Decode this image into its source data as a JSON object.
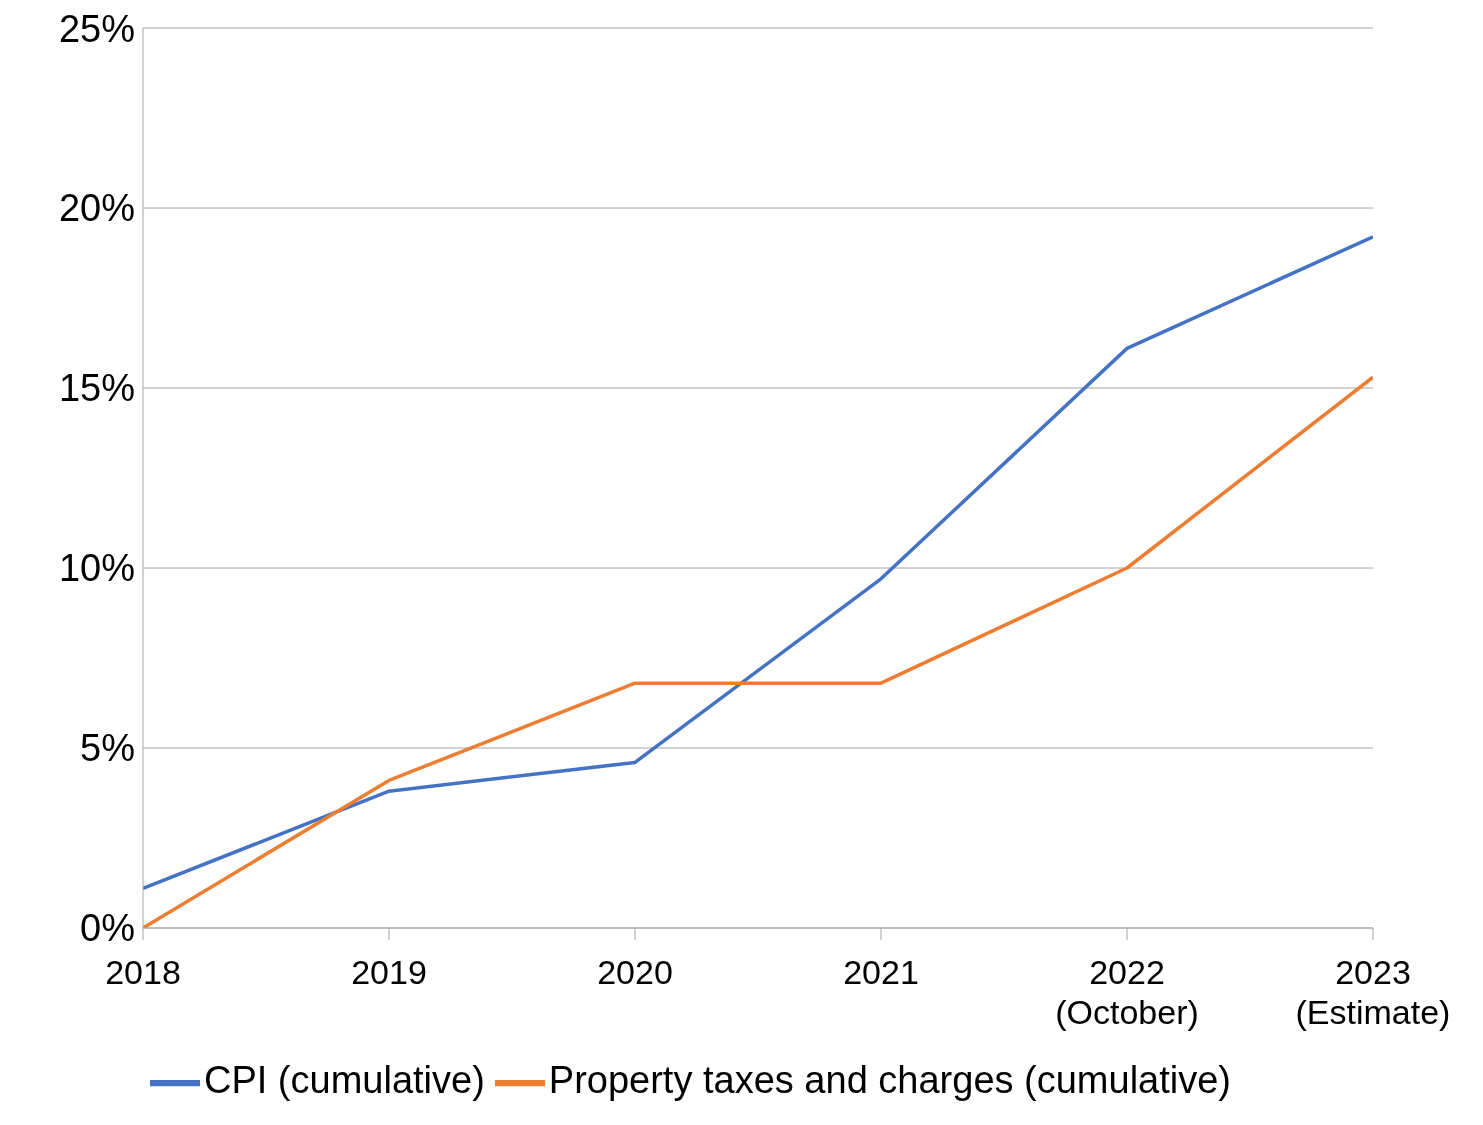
{
  "chart_data": {
    "type": "line",
    "categories": [
      "2018",
      "2019",
      "2020",
      "2021",
      "2022\n(October)",
      "2023\n(Estimate)"
    ],
    "series": [
      {
        "name": "CPI (cumulative)",
        "color": "#4472c4",
        "values": [
          1.1,
          3.8,
          4.6,
          9.7,
          16.1,
          19.2
        ]
      },
      {
        "name": "Property taxes and charges (cumulative)",
        "color": "#ed7d31",
        "values": [
          0,
          4.1,
          6.8,
          6.8,
          10.0,
          15.3
        ]
      }
    ],
    "ylim": [
      0,
      25
    ],
    "yticks": [
      {
        "value": 0,
        "label": "0%"
      },
      {
        "value": 5,
        "label": "5%"
      },
      {
        "value": 10,
        "label": "10%"
      },
      {
        "value": 15,
        "label": "15%"
      },
      {
        "value": 20,
        "label": "20%"
      },
      {
        "value": 25,
        "label": "25%"
      }
    ],
    "grid": "y",
    "legend": "bottom",
    "marker": "none",
    "line_style": "solid"
  }
}
